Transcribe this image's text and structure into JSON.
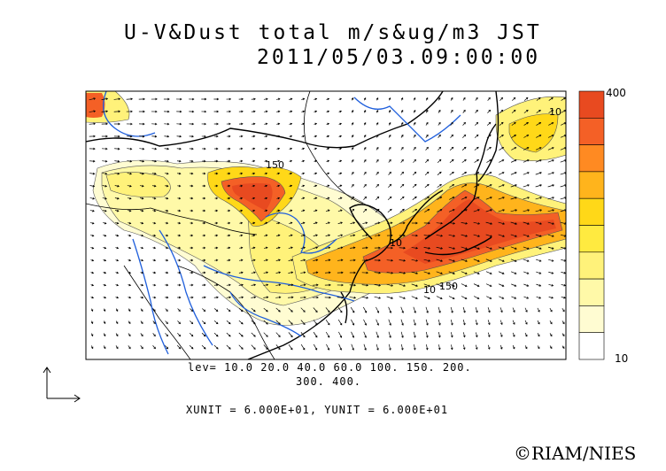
{
  "title": {
    "line1": "U-V&Dust total m/s&ug/m3 JST",
    "line2": "2011/05/03.09:00:00"
  },
  "legend": {
    "max_label": "400",
    "min_label": "10",
    "levels": [
      10,
      20,
      40,
      60,
      100,
      150,
      200,
      300,
      400
    ],
    "colors": [
      "#ffffff",
      "#fffcd2",
      "#fff9a8",
      "#fff27a",
      "#ffea40",
      "#ffd818",
      "#ffb41c",
      "#ff8a22",
      "#f46026",
      "#e84a20"
    ]
  },
  "levels_text": {
    "line1": "lev= 10.0 20.0 40.0 60.0 100. 150. 200.",
    "line2": "300. 400."
  },
  "units_text": "XUNIT = 6.000E+01, YUNIT = 6.000E+01",
  "contour_labels": [
    "150",
    "10",
    "150",
    "10",
    "10"
  ],
  "copyright": "©RIAM/NIES",
  "colors": {
    "coastline": "#000000",
    "rivers": "#1f5fdc",
    "wind_vectors": "#000000"
  }
}
